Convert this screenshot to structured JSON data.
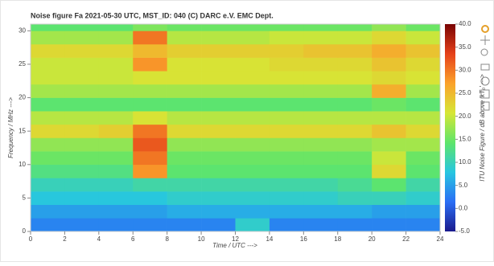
{
  "chart_data": {
    "type": "heatmap",
    "title": "Noise figure Fa  2021-05-30  UTC,  MST_ID:  040   (C) DARC e.V. EMC Dept.",
    "x_label": "Time / UTC --->",
    "y_label": "Frequency / MHz --->",
    "colorbar_label": "ITU Noise Figure / dB above 'kT₀' --->",
    "xbins": [
      0,
      2,
      4,
      6,
      8,
      10,
      12,
      14,
      16,
      18,
      20,
      22,
      24
    ],
    "ybins": [
      0,
      2,
      4,
      6,
      8,
      10,
      12,
      14,
      16,
      18,
      20,
      22,
      24,
      26,
      28,
      30,
      31
    ],
    "values": [
      [
        3,
        3,
        3,
        3,
        3,
        3,
        9,
        3,
        3,
        3,
        3,
        3
      ],
      [
        5,
        5,
        5,
        5,
        6,
        6,
        6,
        6,
        6,
        6,
        5,
        5
      ],
      [
        8,
        8,
        8,
        8,
        9,
        9,
        9,
        9,
        9,
        10,
        10,
        9
      ],
      [
        10,
        10,
        10,
        11,
        11,
        11,
        11,
        11,
        11,
        12,
        14,
        11
      ],
      [
        13,
        13,
        13,
        28,
        14,
        14,
        14,
        14,
        14,
        14,
        22,
        14
      ],
      [
        15,
        15,
        15,
        30,
        15,
        15,
        15,
        15,
        15,
        15,
        20,
        15
      ],
      [
        17,
        17,
        17,
        32,
        17,
        17,
        17,
        17,
        17,
        17,
        18,
        18
      ],
      [
        22,
        22,
        23,
        30,
        22,
        22,
        22,
        22,
        22,
        22,
        24,
        22
      ],
      [
        19,
        19,
        19,
        21,
        19,
        19,
        19,
        19,
        19,
        19,
        19,
        19
      ],
      [
        14,
        14,
        14,
        14,
        14,
        14,
        14,
        14,
        14,
        14,
        15,
        14
      ],
      [
        18,
        18,
        18,
        18,
        18,
        18,
        18,
        18,
        18,
        18,
        26,
        18
      ],
      [
        20,
        20,
        20,
        21,
        21,
        21,
        21,
        21,
        21,
        21,
        22,
        21
      ],
      [
        20,
        20,
        20,
        28,
        21,
        21,
        21,
        22,
        22,
        22,
        24,
        22
      ],
      [
        22,
        22,
        22,
        25,
        23,
        23,
        23,
        23,
        24,
        24,
        26,
        24
      ],
      [
        18,
        18,
        18,
        30,
        19,
        19,
        19,
        20,
        20,
        20,
        22,
        20
      ],
      [
        14,
        14,
        14,
        16,
        15,
        15,
        15,
        15,
        15,
        15,
        17,
        15
      ]
    ],
    "colors": [
      "#1a1a8c",
      "#2a6ef5",
      "#27c6e0",
      "#5ee56a",
      "#d6e635",
      "#fba22b",
      "#e5401a",
      "#7a0403"
    ],
    "xlim": [
      0,
      24
    ],
    "ylim": [
      0,
      31
    ],
    "clim": [
      -5,
      40
    ],
    "xticks": [
      0,
      2,
      4,
      6,
      8,
      10,
      12,
      14,
      16,
      18,
      20,
      22,
      24
    ],
    "yticks": [
      0,
      5,
      10,
      15,
      20,
      25,
      30
    ],
    "cticks": [
      {
        "value": -5,
        "label": "-5.0"
      },
      {
        "value": 0,
        "label": "0.0"
      },
      {
        "value": 5,
        "label": "5.0"
      },
      {
        "value": 10,
        "label": "10.0"
      },
      {
        "value": 15,
        "label": "15.0"
      },
      {
        "value": 20,
        "label": "20.0"
      },
      {
        "value": 25,
        "label": "25.0"
      },
      {
        "value": 30,
        "label": "30.0"
      },
      {
        "value": 35,
        "label": "35.0"
      },
      {
        "value": 40,
        "label": "40.0"
      }
    ]
  }
}
